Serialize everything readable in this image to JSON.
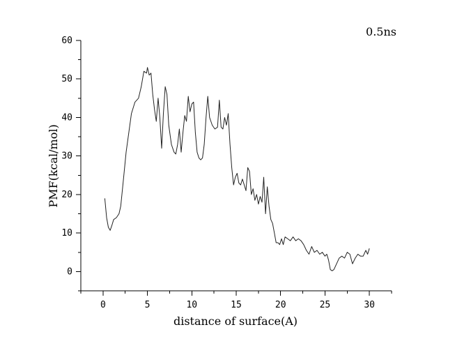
{
  "chart_data": {
    "type": "line",
    "title": "",
    "annotation": "0.5ns",
    "xlabel": "distance of surface(A)",
    "ylabel": "PMF(kcal/mol)",
    "xlim": [
      -2.5,
      32.5
    ],
    "ylim": [
      -5,
      60
    ],
    "x_ticks": [
      "0",
      "5",
      "10",
      "15",
      "20",
      "25",
      "30"
    ],
    "y_ticks": [
      "0",
      "10",
      "20",
      "30",
      "40",
      "50",
      "60"
    ],
    "grid": false,
    "legend": "none",
    "line_color": "#222222",
    "series": [
      {
        "name": "",
        "x": [
          0.2,
          0.4,
          0.6,
          0.8,
          1.0,
          1.2,
          1.5,
          1.8,
          2.0,
          2.3,
          2.6,
          2.9,
          3.2,
          3.6,
          4.0,
          4.3,
          4.6,
          4.9,
          5.0,
          5.2,
          5.4,
          5.6,
          5.8,
          6.0,
          6.2,
          6.4,
          6.6,
          6.8,
          7.0,
          7.2,
          7.4,
          7.7,
          8.0,
          8.2,
          8.4,
          8.6,
          8.8,
          9.0,
          9.2,
          9.4,
          9.6,
          9.8,
          10.0,
          10.2,
          10.4,
          10.6,
          10.8,
          11.0,
          11.2,
          11.4,
          11.6,
          11.8,
          12.0,
          12.3,
          12.6,
          12.9,
          13.1,
          13.3,
          13.5,
          13.7,
          13.9,
          14.1,
          14.3,
          14.5,
          14.7,
          14.9,
          15.1,
          15.3,
          15.5,
          15.7,
          15.9,
          16.1,
          16.3,
          16.5,
          16.7,
          16.9,
          17.1,
          17.3,
          17.5,
          17.7,
          17.9,
          18.1,
          18.3,
          18.5,
          18.7,
          18.9,
          19.1,
          19.3,
          19.5,
          19.7,
          19.9,
          20.1,
          20.3,
          20.5,
          20.8,
          21.1,
          21.4,
          21.7,
          22.0,
          22.3,
          22.6,
          22.9,
          23.2,
          23.5,
          23.8,
          24.1,
          24.4,
          24.7,
          25.0,
          25.2,
          25.4,
          25.6,
          25.8,
          26.0,
          26.3,
          26.6,
          26.9,
          27.2,
          27.5,
          27.8,
          28.1,
          28.4,
          28.7,
          29.0,
          29.3,
          29.6,
          29.8,
          30.0
        ],
        "y": [
          19,
          14,
          11.5,
          10.7,
          12,
          13.5,
          14,
          15,
          17,
          24,
          31,
          36,
          41,
          44,
          45,
          48,
          52,
          51.5,
          53,
          51,
          51.5,
          46,
          42,
          39,
          45,
          40,
          32,
          41,
          48,
          46,
          38,
          33,
          31,
          30.5,
          33,
          37,
          31,
          36,
          40.5,
          39,
          45.5,
          41.5,
          43.5,
          44,
          36,
          31,
          29.5,
          29,
          29.5,
          33,
          40,
          45.5,
          40,
          38,
          37,
          37.5,
          44.5,
          37.5,
          37,
          40,
          38,
          41,
          33,
          27,
          22.5,
          24.5,
          25.5,
          23,
          22.5,
          24,
          22.5,
          21,
          27,
          26,
          20,
          21.5,
          18.5,
          20,
          17.5,
          19.5,
          18,
          24.5,
          15,
          22,
          17,
          13.5,
          12.5,
          10,
          7.5,
          7.5,
          7,
          8.5,
          7,
          9,
          8.5,
          8,
          9,
          8,
          8.5,
          8,
          7,
          5.5,
          4.5,
          6.5,
          5,
          5.5,
          4.5,
          5,
          4,
          4.5,
          3,
          0.5,
          0.2,
          0.5,
          2,
          3.5,
          4,
          3.5,
          5,
          4.5,
          2,
          3.5,
          4.5,
          4,
          4,
          5.5,
          4.5,
          6
        ]
      }
    ]
  }
}
